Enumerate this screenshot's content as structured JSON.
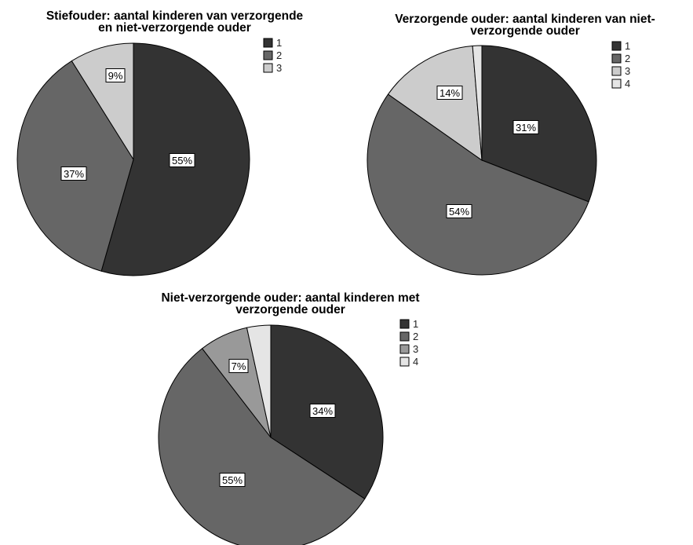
{
  "chart_data": [
    {
      "type": "pie",
      "title_lines": [
        "Stiefouder: aantal kinderen van verzorgende",
        "en niet-verzorgende ouder"
      ],
      "legend": [
        "1",
        "2",
        "3"
      ],
      "slices": [
        {
          "label": "1",
          "value": 55,
          "display": "55%"
        },
        {
          "label": "2",
          "value": 37,
          "display": "37%"
        },
        {
          "label": "3",
          "value": 9,
          "display": "9%"
        }
      ]
    },
    {
      "type": "pie",
      "title_lines": [
        "Verzorgende ouder: aantal kinderen van niet-",
        "verzorgende ouder"
      ],
      "legend": [
        "1",
        "2",
        "3",
        "4"
      ],
      "slices": [
        {
          "label": "1",
          "value": 31,
          "display": "31%"
        },
        {
          "label": "2",
          "value": 54,
          "display": "54%"
        },
        {
          "label": "3",
          "value": 14,
          "display": "14%"
        },
        {
          "label": "4",
          "value": 1.3,
          "display": ""
        }
      ]
    },
    {
      "type": "pie",
      "title_lines": [
        "Niet-verzorgende ouder: aantal kinderen met",
        "verzorgende ouder"
      ],
      "legend": [
        "1",
        "2",
        "3",
        "4"
      ],
      "slices": [
        {
          "label": "1",
          "value": 34,
          "display": "34%"
        },
        {
          "label": "2",
          "value": 55,
          "display": "55%"
        },
        {
          "label": "3",
          "value": 7,
          "display": "7%"
        },
        {
          "label": "4",
          "value": 3.4,
          "display": ""
        }
      ]
    }
  ],
  "colors": {
    "1": "#333333",
    "2": "#666666",
    "3_light": "#cccccc",
    "3_mid": "#999999",
    "4": "#e5e5e5"
  }
}
